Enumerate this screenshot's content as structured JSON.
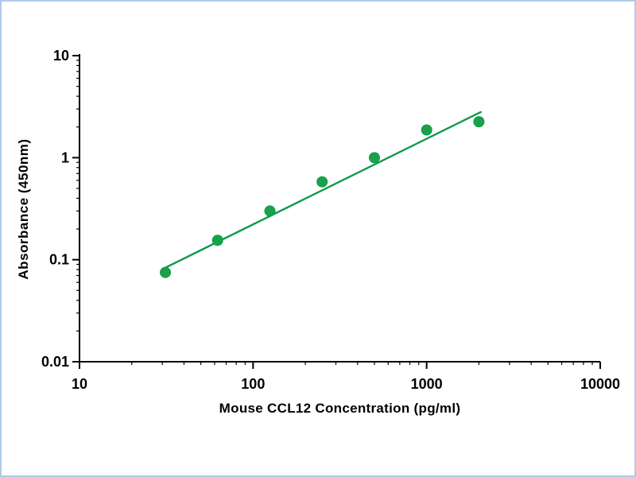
{
  "window": {
    "background": "#ffffff",
    "frame_border_color": "#aecbe9"
  },
  "chart_data": {
    "type": "scatter",
    "title": "",
    "xlabel": "Mouse CCL12 Concentration (pg/ml)",
    "ylabel": "Absorbance (450nm)",
    "xscale": "log",
    "yscale": "log",
    "xlim": [
      10,
      10000
    ],
    "ylim": [
      0.01,
      10
    ],
    "x_tick_labels": [
      "10",
      "100",
      "1000",
      "10000"
    ],
    "y_tick_labels": [
      "0.01",
      "0.1",
      "1",
      "10"
    ],
    "grid": false,
    "legend": false,
    "points": [
      {
        "x": 31.25,
        "y": 0.075
      },
      {
        "x": 62.5,
        "y": 0.155
      },
      {
        "x": 125,
        "y": 0.3
      },
      {
        "x": 250,
        "y": 0.58
      },
      {
        "x": 500,
        "y": 1.0
      },
      {
        "x": 1000,
        "y": 1.87
      },
      {
        "x": 2000,
        "y": 2.25
      }
    ],
    "trendline": {
      "x1": 31,
      "y1": 0.083,
      "x2": 2050,
      "y2": 2.8
    },
    "marker_color": "#1aa24b",
    "line_color": "#11994a",
    "axis_color": "#000000"
  }
}
